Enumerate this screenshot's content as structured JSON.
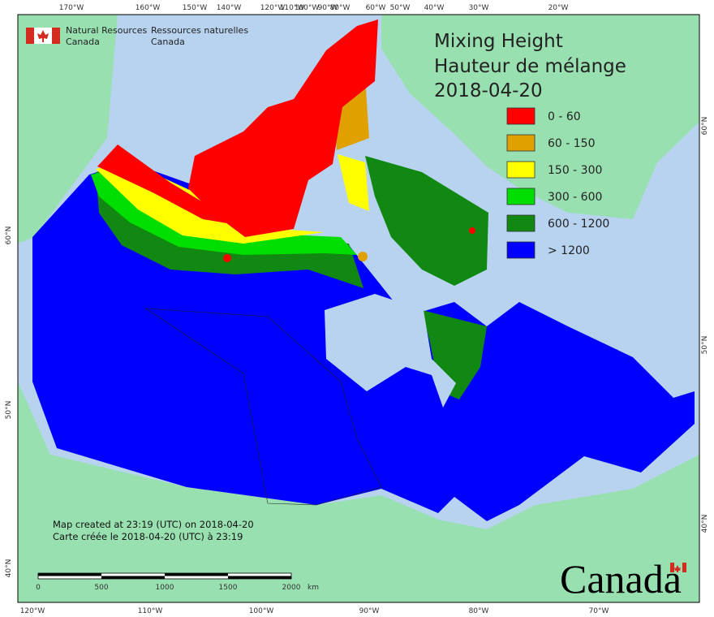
{
  "header": {
    "agency_en": [
      "Natural Resources",
      "Canada"
    ],
    "agency_fr": [
      "Ressources naturelles",
      "Canada"
    ]
  },
  "title": {
    "line1": "Mixing Height",
    "line2": "Hauteur de mélange",
    "date": "2018-04-20"
  },
  "legend": [
    {
      "label": "0 - 60",
      "color": "#ff0000"
    },
    {
      "label": "60 - 150",
      "color": "#e0a000"
    },
    {
      "label": "150 - 300",
      "color": "#ffff00"
    },
    {
      "label": "300 - 600",
      "color": "#00dd00"
    },
    {
      "label": "600 - 1200",
      "color": "#118811"
    },
    {
      "label": "> 1200",
      "color": "#0000ff"
    }
  ],
  "notes": [
    "Map created at 23:19 (UTC) on 2018-04-20",
    "Carte créée le 2018-04-20 (UTC) à 23:19"
  ],
  "scale_bar": {
    "labels": [
      "0",
      "500",
      "1000",
      "1500",
      "2000"
    ],
    "unit": "km"
  },
  "graticule": {
    "top": [
      "170°W",
      "160°W",
      "150°W",
      "140°W",
      "120°W",
      "110°W",
      "100°W",
      "90°W",
      "80°W",
      "60°W",
      "50°W",
      "40°W",
      "30°W",
      "20°W"
    ],
    "bottom": [
      "120°W",
      "110°W",
      "100°W",
      "90°W",
      "80°W",
      "70°W"
    ],
    "left": [
      "60°N",
      "50°N",
      "40°N"
    ],
    "right": [
      "60°N",
      "50°N",
      "40°N"
    ]
  },
  "wordmark": "Canada"
}
